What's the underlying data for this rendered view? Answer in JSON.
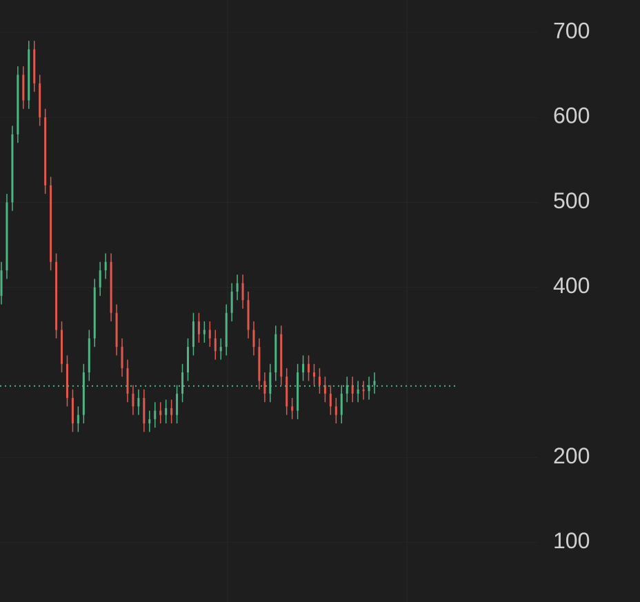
{
  "chart_data": {
    "type": "candlestick",
    "open": [
      390,
      420,
      500,
      580,
      650,
      620,
      680,
      640,
      600,
      520,
      430,
      350,
      310,
      270,
      240,
      250,
      300,
      340,
      400,
      420,
      430,
      370,
      330,
      305,
      275,
      260,
      270,
      240,
      245,
      255,
      250,
      258,
      250,
      275,
      300,
      330,
      360,
      345,
      350,
      340,
      325,
      330,
      370,
      395,
      405,
      385,
      350,
      330,
      290,
      275,
      300,
      345,
      295,
      260,
      255,
      300,
      310,
      300,
      295,
      285,
      275,
      260,
      250,
      275,
      285,
      275,
      280,
      278,
      285
    ],
    "high": [
      430,
      510,
      590,
      660,
      660,
      690,
      690,
      650,
      610,
      530,
      440,
      360,
      320,
      280,
      260,
      310,
      350,
      410,
      430,
      440,
      440,
      380,
      340,
      315,
      285,
      280,
      280,
      255,
      265,
      265,
      268,
      268,
      285,
      310,
      340,
      370,
      370,
      360,
      360,
      350,
      340,
      380,
      405,
      415,
      415,
      395,
      360,
      340,
      300,
      310,
      355,
      355,
      305,
      270,
      310,
      320,
      320,
      310,
      305,
      295,
      285,
      270,
      285,
      295,
      295,
      290,
      290,
      295,
      300
    ],
    "low": [
      380,
      410,
      490,
      570,
      610,
      610,
      630,
      590,
      510,
      420,
      340,
      300,
      260,
      230,
      230,
      240,
      290,
      330,
      390,
      410,
      360,
      320,
      295,
      265,
      250,
      250,
      230,
      230,
      235,
      240,
      240,
      240,
      240,
      265,
      290,
      320,
      335,
      335,
      330,
      315,
      315,
      320,
      360,
      385,
      375,
      340,
      320,
      280,
      265,
      265,
      290,
      285,
      250,
      245,
      245,
      290,
      290,
      285,
      275,
      265,
      250,
      240,
      240,
      265,
      265,
      265,
      268,
      268,
      275
    ],
    "close": [
      420,
      500,
      580,
      650,
      620,
      680,
      640,
      600,
      520,
      430,
      350,
      310,
      270,
      240,
      250,
      300,
      340,
      400,
      420,
      430,
      370,
      330,
      305,
      275,
      260,
      270,
      240,
      245,
      255,
      250,
      258,
      250,
      275,
      300,
      330,
      360,
      345,
      350,
      340,
      325,
      330,
      370,
      395,
      405,
      385,
      350,
      330,
      290,
      275,
      300,
      345,
      295,
      260,
      255,
      300,
      310,
      300,
      295,
      285,
      275,
      260,
      250,
      275,
      285,
      275,
      280,
      278,
      285,
      290
    ],
    "up_color": "#4fb584",
    "down_color": "#e0594f",
    "price_line": 284,
    "ylim": [
      30,
      738
    ],
    "yticks": [
      100,
      200,
      400,
      500,
      600,
      700
    ],
    "grid": true
  }
}
